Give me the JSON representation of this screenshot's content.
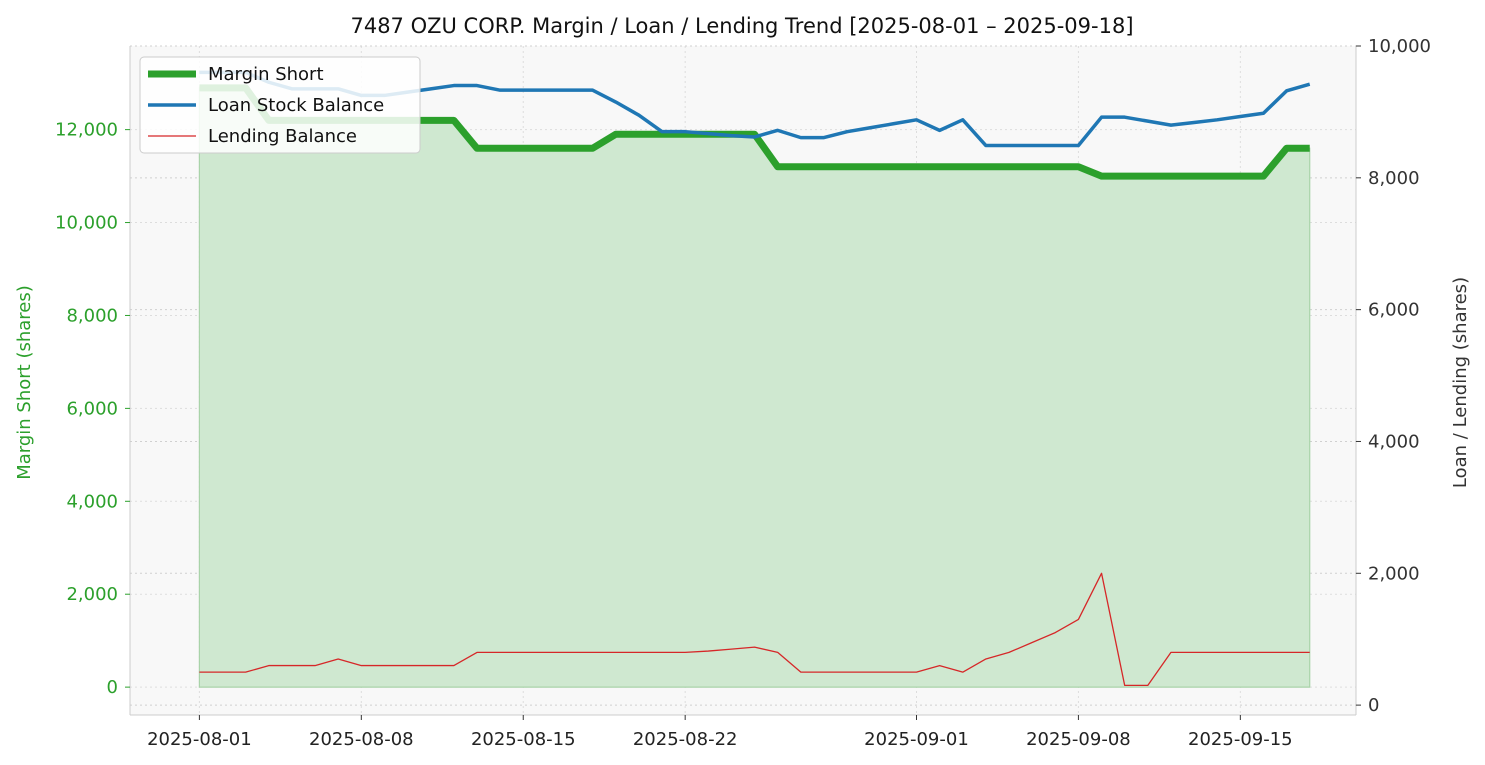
{
  "chart_data": {
    "type": "line",
    "title": "7487 OZU CORP. Margin / Loan / Lending Trend [2025-08-01 – 2025-09-18]",
    "xlabel": "",
    "ylabel_left": "Margin Short (shares)",
    "ylabel_right": "Loan / Lending (shares)",
    "x_ticks": [
      "2025-08-01",
      "2025-08-08",
      "2025-08-15",
      "2025-08-22",
      "2025-09-01",
      "2025-09-08",
      "2025-09-15"
    ],
    "xlim": [
      "2025-07-29",
      "2025-09-20"
    ],
    "ylim_left": [
      -600,
      13800
    ],
    "ylim_right": [
      -150,
      10000
    ],
    "y_ticks_left": [
      0,
      2000,
      4000,
      6000,
      8000,
      10000,
      12000
    ],
    "y_ticks_right": [
      0,
      2000,
      4000,
      6000,
      8000,
      10000
    ],
    "y_tick_labels_left": [
      "0",
      "2,000",
      "4,000",
      "6,000",
      "8,000",
      "10,000",
      "12,000"
    ],
    "y_tick_labels_right": [
      "0",
      "2,000",
      "4,000",
      "6,000",
      "8,000",
      "10,000"
    ],
    "grid": true,
    "legend_position": "top-left",
    "colors": {
      "margin": "#2ca02c",
      "loan": "#1f77b4",
      "lending": "#d62728",
      "fill": "#cfe8d0",
      "left_axis_text": "#2ca02c",
      "right_axis_text": "#333333",
      "plot_bg": "#f8f8f8"
    },
    "series": [
      {
        "name": "Margin Short",
        "axis": "left",
        "style": "thick",
        "filled": true,
        "x": [
          "2025-08-01",
          "2025-08-02",
          "2025-08-03",
          "2025-08-04",
          "2025-08-05",
          "2025-08-06",
          "2025-08-07",
          "2025-08-08",
          "2025-08-09",
          "2025-08-10",
          "2025-08-11",
          "2025-08-12",
          "2025-08-13",
          "2025-08-14",
          "2025-08-15",
          "2025-08-16",
          "2025-08-17",
          "2025-08-18",
          "2025-08-19",
          "2025-08-20",
          "2025-08-21",
          "2025-08-22",
          "2025-08-23",
          "2025-08-24",
          "2025-08-25",
          "2025-08-26",
          "2025-08-27",
          "2025-08-28",
          "2025-08-29",
          "2025-08-30",
          "2025-08-31",
          "2025-09-01",
          "2025-09-02",
          "2025-09-03",
          "2025-09-04",
          "2025-09-05",
          "2025-09-06",
          "2025-09-07",
          "2025-09-08",
          "2025-09-09",
          "2025-09-10",
          "2025-09-11",
          "2025-09-12",
          "2025-09-13",
          "2025-09-14",
          "2025-09-15",
          "2025-09-16",
          "2025-09-17",
          "2025-09-18"
        ],
        "values": [
          12900,
          12900,
          12900,
          12200,
          12200,
          12200,
          12200,
          12200,
          12200,
          12200,
          12200,
          12200,
          11600,
          11600,
          11600,
          11600,
          11600,
          11600,
          11900,
          11900,
          11900,
          11900,
          11900,
          11900,
          11900,
          11200,
          11200,
          11200,
          11200,
          11200,
          11200,
          11200,
          11200,
          11200,
          11200,
          11200,
          11200,
          11200,
          11200,
          11000,
          11000,
          11000,
          11000,
          11000,
          11000,
          11000,
          11000,
          11600,
          11600
        ]
      },
      {
        "name": "Loan Stock Balance",
        "axis": "right",
        "style": "medium",
        "filled": false,
        "x": [
          "2025-08-01",
          "2025-08-02",
          "2025-08-03",
          "2025-08-04",
          "2025-08-05",
          "2025-08-06",
          "2025-08-07",
          "2025-08-08",
          "2025-08-09",
          "2025-08-10",
          "2025-08-11",
          "2025-08-12",
          "2025-08-13",
          "2025-08-14",
          "2025-08-15",
          "2025-08-16",
          "2025-08-17",
          "2025-08-18",
          "2025-08-19",
          "2025-08-20",
          "2025-08-21",
          "2025-08-22",
          "2025-08-23",
          "2025-08-24",
          "2025-08-25",
          "2025-08-26",
          "2025-08-27",
          "2025-08-28",
          "2025-08-29",
          "2025-08-30",
          "2025-08-31",
          "2025-09-01",
          "2025-09-02",
          "2025-09-03",
          "2025-09-04",
          "2025-09-05",
          "2025-09-06",
          "2025-09-07",
          "2025-09-08",
          "2025-09-09",
          "2025-09-10",
          "2025-09-11",
          "2025-09-12",
          "2025-09-13",
          "2025-09-14",
          "2025-09-15",
          "2025-09-16",
          "2025-09-17",
          "2025-09-18"
        ],
        "values": [
          9600,
          9600,
          9600,
          9450,
          9350,
          9350,
          9350,
          9250,
          9250,
          9300,
          9350,
          9400,
          9400,
          9330,
          9330,
          9330,
          9330,
          9330,
          9150,
          8950,
          8700,
          8700,
          8670,
          8640,
          8620,
          8720,
          8610,
          8610,
          8700,
          8760,
          8820,
          8880,
          8720,
          8880,
          8490,
          8490,
          8490,
          8490,
          8490,
          8920,
          8920,
          8860,
          8800,
          8840,
          8880,
          8930,
          8980,
          9320,
          9420
        ]
      },
      {
        "name": "Lending Balance",
        "axis": "right",
        "style": "thin",
        "filled": false,
        "x": [
          "2025-08-01",
          "2025-08-02",
          "2025-08-03",
          "2025-08-04",
          "2025-08-05",
          "2025-08-06",
          "2025-08-07",
          "2025-08-08",
          "2025-08-09",
          "2025-08-10",
          "2025-08-11",
          "2025-08-12",
          "2025-08-13",
          "2025-08-14",
          "2025-08-15",
          "2025-08-16",
          "2025-08-17",
          "2025-08-18",
          "2025-08-19",
          "2025-08-20",
          "2025-08-21",
          "2025-08-22",
          "2025-08-23",
          "2025-08-24",
          "2025-08-25",
          "2025-08-26",
          "2025-08-27",
          "2025-08-28",
          "2025-08-29",
          "2025-08-30",
          "2025-08-31",
          "2025-09-01",
          "2025-09-02",
          "2025-09-03",
          "2025-09-04",
          "2025-09-05",
          "2025-09-06",
          "2025-09-07",
          "2025-09-08",
          "2025-09-09",
          "2025-09-10",
          "2025-09-11",
          "2025-09-12",
          "2025-09-13",
          "2025-09-14",
          "2025-09-15",
          "2025-09-16",
          "2025-09-17",
          "2025-09-18"
        ],
        "values": [
          500,
          500,
          500,
          600,
          600,
          600,
          700,
          600,
          600,
          600,
          600,
          600,
          800,
          800,
          800,
          800,
          800,
          800,
          800,
          800,
          800,
          800,
          820,
          850,
          880,
          800,
          500,
          500,
          500,
          500,
          500,
          500,
          600,
          500,
          700,
          800,
          950,
          1100,
          1300,
          2000,
          300,
          300,
          800,
          800,
          800,
          800,
          800,
          800,
          800
        ]
      }
    ]
  }
}
